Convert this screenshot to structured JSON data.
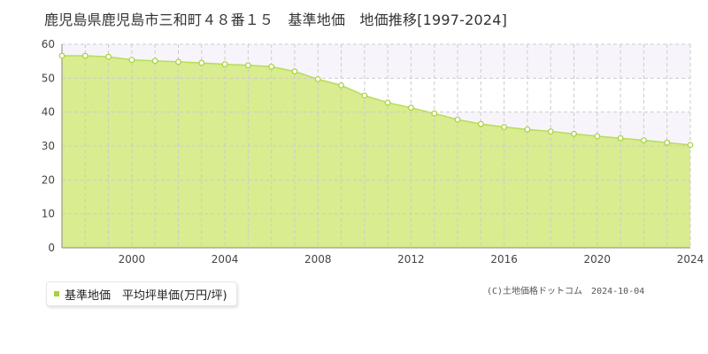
{
  "title": "鹿児島県鹿児島市三和町４８番１５　基準地価　地価推移[1997-2024]",
  "legend": {
    "label": "基準地価　平均坪単価(万円/坪)"
  },
  "copyright": "(C)土地価格ドットコム　2024-10-04",
  "colors": {
    "fill": "#d9ec8f",
    "line": "#b8dc5c",
    "marker": "#a5d23c",
    "band": "#f7f5fb",
    "grid": "#cccccc"
  },
  "chart_data": {
    "type": "area",
    "title": "鹿児島県鹿児島市三和町４８番１５　基準地価　地価推移[1997-2024]",
    "xlabel": "",
    "ylabel": "",
    "xlim": [
      1997,
      2024
    ],
    "ylim": [
      0,
      60
    ],
    "yticks": [
      0,
      10,
      20,
      30,
      40,
      50,
      60
    ],
    "xticks": [
      2000,
      2004,
      2008,
      2012,
      2016,
      2020,
      2024
    ],
    "grid": true,
    "legend_position": "bottom-left",
    "series": [
      {
        "name": "基準地価　平均坪単価(万円/坪)",
        "x": [
          1997,
          1998,
          1999,
          2000,
          2001,
          2002,
          2003,
          2004,
          2005,
          2006,
          2007,
          2008,
          2009,
          2010,
          2011,
          2012,
          2013,
          2014,
          2015,
          2016,
          2017,
          2018,
          2019,
          2020,
          2021,
          2022,
          2023,
          2024
        ],
        "values": [
          56.6,
          56.6,
          56.3,
          55.4,
          55.1,
          54.8,
          54.5,
          54.1,
          53.8,
          53.4,
          52.0,
          49.7,
          47.9,
          44.9,
          42.8,
          41.3,
          39.6,
          37.8,
          36.5,
          35.6,
          34.9,
          34.3,
          33.6,
          32.9,
          32.3,
          31.7,
          31.0,
          30.3
        ]
      }
    ]
  }
}
